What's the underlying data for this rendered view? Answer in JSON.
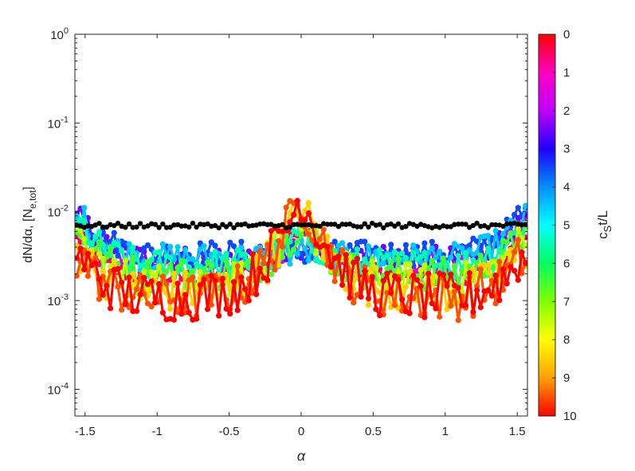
{
  "chart_data": {
    "type": "scatter",
    "title": "",
    "xlabel": "α",
    "ylabel_main": "dN/dα, [N",
    "ylabel_sub": "e,tot",
    "ylabel_close": "]",
    "x_scale": "linear",
    "y_scale": "log",
    "xlim": [
      -1.5708,
      1.5708
    ],
    "ylim": [
      5e-05,
      1
    ],
    "x_ticks": [
      -1.5,
      -1,
      -0.5,
      0,
      0.5,
      1,
      1.5
    ],
    "x_tick_labels": [
      "-1.5",
      "-1",
      "-0.5",
      "0",
      "0.5",
      "1",
      "1.5"
    ],
    "y_ticks": [
      {
        "value": 0.0001,
        "base": "10",
        "exp": "-4"
      },
      {
        "value": 0.001,
        "base": "10",
        "exp": "-3"
      },
      {
        "value": 0.01,
        "base": "10",
        "exp": "-2"
      },
      {
        "value": 0.1,
        "base": "10",
        "exp": "-1"
      },
      {
        "value": 1,
        "base": "10",
        "exp": "0"
      }
    ],
    "grid": false,
    "colorbar": {
      "label_c": "c",
      "label_sub": "S",
      "label_rest": "t/L",
      "range": [
        0,
        10
      ],
      "reversed": true,
      "tick_labels": [
        "0",
        "1",
        "2",
        "3",
        "4",
        "5",
        "6",
        "7",
        "8",
        "9",
        "10"
      ],
      "colormap": "hsv-reversed",
      "stops": [
        "#ff0000",
        "#ff00c0",
        "#c000ff",
        "#2000ff",
        "#0090ff",
        "#00ffff",
        "#00ff60",
        "#80ff00",
        "#ffff00",
        "#ffa000",
        "#ff0000"
      ]
    },
    "series": [
      {
        "time": 0,
        "model": {
          "edge": 0.007,
          "center": 0.007,
          "width": 0.12,
          "jitter": 0.1
        },
        "style": "black-dots-dashed-line"
      },
      {
        "time": 0.5,
        "model": {
          "edge": 0.01,
          "center": 0.008,
          "width": 0.12,
          "jitter": 0.12
        }
      },
      {
        "time": 1.5,
        "model": {
          "edge": 0.015,
          "center": 0.0045,
          "width": 0.12,
          "jitter": 0.14
        }
      },
      {
        "time": 2.5,
        "model": {
          "edge": 0.017,
          "center": 0.003,
          "width": 0.12,
          "jitter": 0.16
        }
      },
      {
        "time": 3.5,
        "model": {
          "edge": 0.019,
          "center": 0.0028,
          "width": 0.12,
          "jitter": 0.18
        }
      },
      {
        "time": 4.5,
        "model": {
          "edge": 0.017,
          "center": 0.004,
          "width": 0.12,
          "jitter": 0.2
        }
      },
      {
        "time": 5.5,
        "model": {
          "edge": 0.014,
          "center": 0.0065,
          "width": 0.12,
          "jitter": 0.22
        }
      },
      {
        "time": 6.5,
        "model": {
          "edge": 0.011,
          "center": 0.008,
          "width": 0.12,
          "jitter": 0.24
        }
      },
      {
        "time": 7.5,
        "model": {
          "edge": 0.009,
          "center": 0.01,
          "width": 0.12,
          "jitter": 0.27
        }
      },
      {
        "time": 8.5,
        "model": {
          "edge": 0.007,
          "center": 0.012,
          "width": 0.12,
          "jitter": 0.3
        }
      },
      {
        "time": 9.5,
        "model": {
          "edge": 0.006,
          "center": 0.014,
          "width": 0.12,
          "jitter": 0.33
        }
      },
      {
        "time": 10,
        "model": {
          "edge": 0.006,
          "center": 0.015,
          "width": 0.12,
          "jitter": 0.35
        }
      }
    ]
  }
}
